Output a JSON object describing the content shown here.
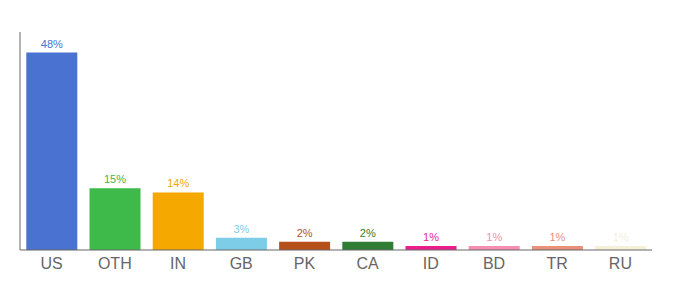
{
  "chart_data": {
    "type": "bar",
    "categories": [
      "US",
      "OTH",
      "IN",
      "GB",
      "PK",
      "CA",
      "ID",
      "BD",
      "TR",
      "RU"
    ],
    "values": [
      48,
      15,
      14,
      3,
      2,
      2,
      1,
      1,
      1,
      1
    ],
    "value_labels": [
      "48%",
      "15%",
      "14%",
      "3%",
      "2%",
      "2%",
      "1%",
      "1%",
      "1%",
      "1%"
    ],
    "colors": [
      "#4a72d1",
      "#3dba4a",
      "#f5a800",
      "#7ecde8",
      "#b5501a",
      "#2e7d32",
      "#e91e8c",
      "#f48fb1",
      "#e8907a",
      "#f5f0d8"
    ],
    "ylim": [
      0,
      53
    ],
    "data_labels": true,
    "tick_labels": "x",
    "grid": false
  }
}
